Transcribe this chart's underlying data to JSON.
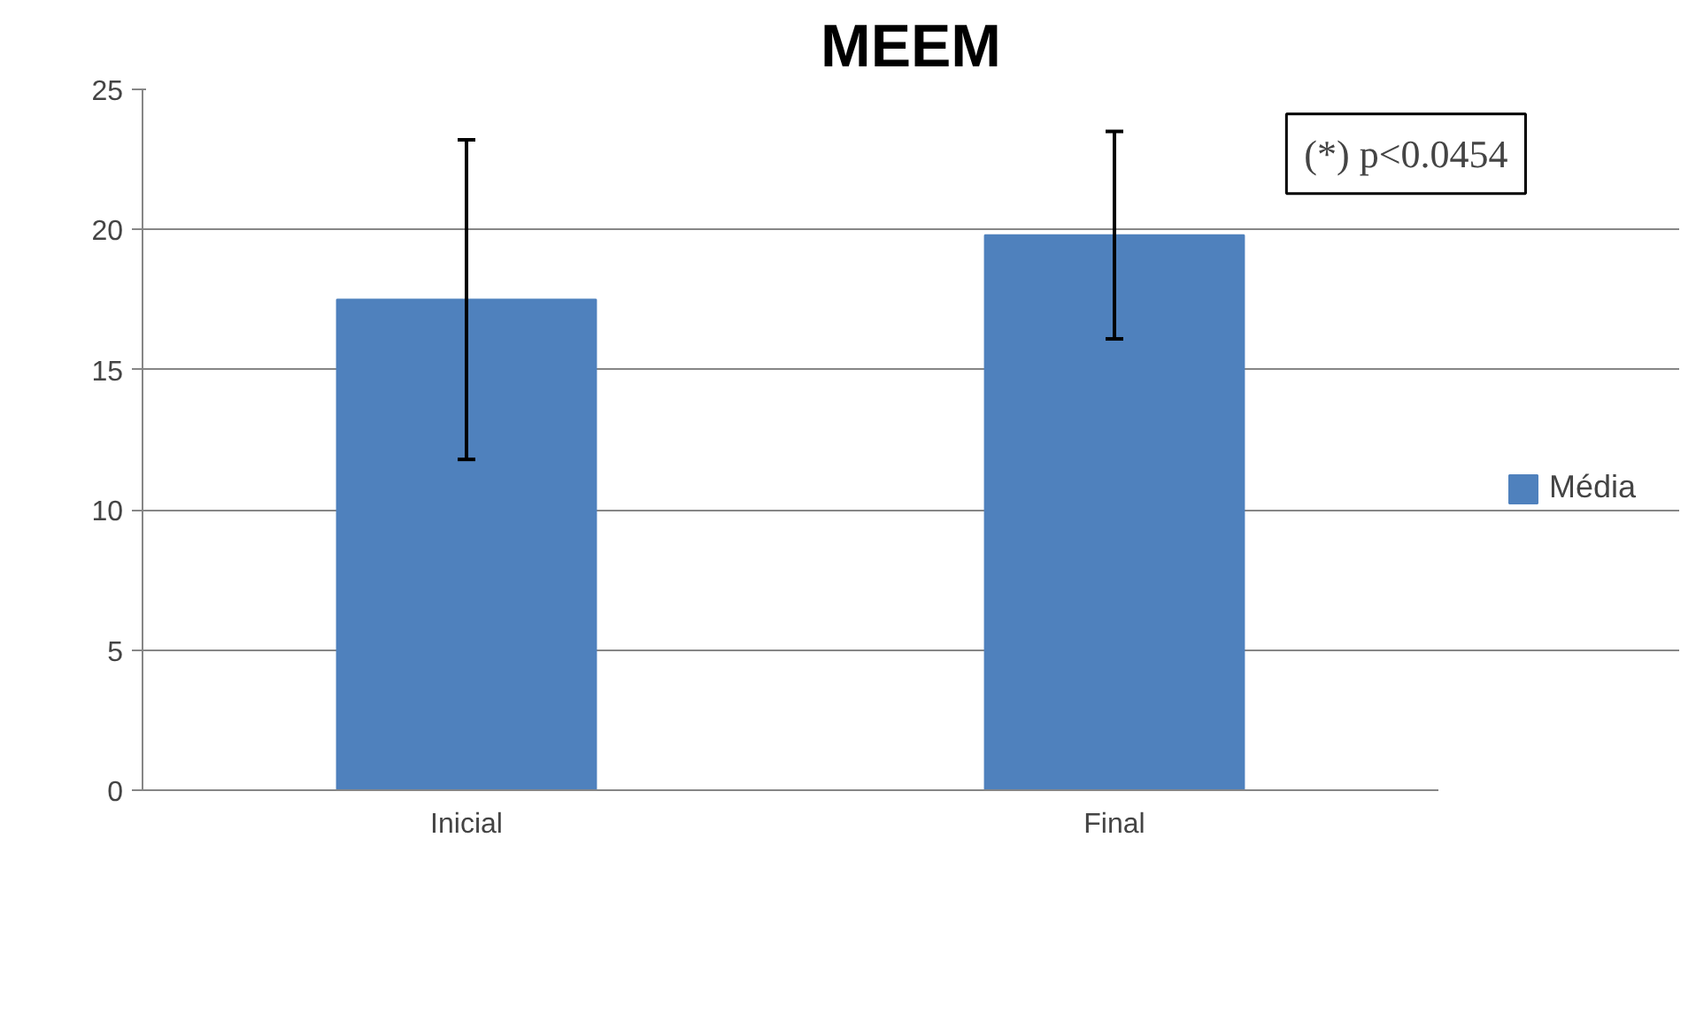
{
  "chart_data": {
    "type": "bar",
    "title": "MEEM",
    "categories": [
      "Inicial",
      "Final"
    ],
    "series": [
      {
        "name": "Média",
        "color": "#4f81bd",
        "values": [
          17.5,
          19.8
        ],
        "errors": [
          5.7,
          3.7
        ]
      }
    ],
    "ylim": [
      0,
      25
    ],
    "yticks": [
      0,
      5,
      10,
      15,
      20,
      25
    ],
    "grid": "y",
    "legend": "right",
    "annotations": [
      "(*) p<0.0454"
    ]
  }
}
